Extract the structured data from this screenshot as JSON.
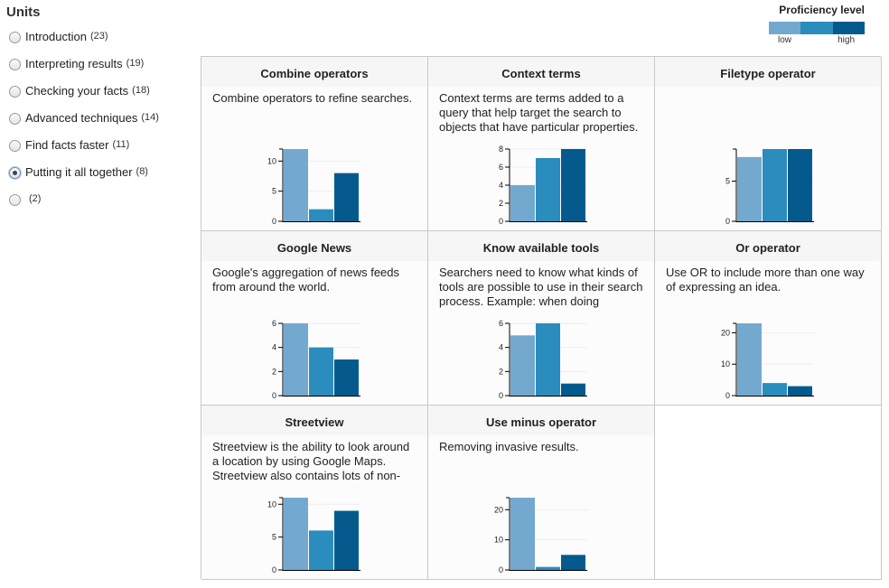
{
  "sidebar": {
    "title": "Units",
    "items": [
      {
        "label": "Introduction",
        "count": "(23)",
        "checked": false
      },
      {
        "label": "Interpreting results",
        "count": "(19)",
        "checked": false
      },
      {
        "label": "Checking your facts",
        "count": "(18)",
        "checked": false
      },
      {
        "label": "Advanced techniques",
        "count": "(14)",
        "checked": false
      },
      {
        "label": "Find facts faster",
        "count": "(11)",
        "checked": false
      },
      {
        "label": "Putting it all together",
        "count": "(8)",
        "checked": true
      },
      {
        "label": "",
        "count": "(2)",
        "checked": false
      }
    ]
  },
  "legend": {
    "title": "Proficiency level",
    "low_label": "low",
    "high_label": "high",
    "colors": [
      "#74a9cf",
      "#2b8cbe",
      "#045a8d"
    ]
  },
  "chart_data": [
    {
      "type": "bar",
      "title": "Combine operators",
      "description": "Combine operators to refine searches.",
      "categories": [
        "low",
        "medium",
        "high"
      ],
      "values": [
        12,
        2,
        8
      ],
      "ylim": [
        0,
        12
      ],
      "yticks": [
        0,
        5,
        10
      ]
    },
    {
      "type": "bar",
      "title": "Context terms",
      "description": "Context terms are terms added to a query that help target the search to objects that have particular properties.",
      "categories": [
        "low",
        "medium",
        "high"
      ],
      "values": [
        4,
        7,
        8
      ],
      "ylim": [
        0,
        8
      ],
      "yticks": [
        0,
        2,
        4,
        6,
        8
      ]
    },
    {
      "type": "bar",
      "title": "Filetype operator",
      "description": "",
      "categories": [
        "low",
        "medium",
        "high"
      ],
      "values": [
        8,
        9,
        9
      ],
      "ylim": [
        0,
        9
      ],
      "yticks": [
        0,
        5
      ]
    },
    {
      "type": "bar",
      "title": "Google News",
      "description": "Google's aggregation of news feeds from around the world.",
      "categories": [
        "low",
        "medium",
        "high"
      ],
      "values": [
        6,
        4,
        3
      ],
      "ylim": [
        0,
        6
      ],
      "yticks": [
        0,
        2,
        4,
        6
      ]
    },
    {
      "type": "bar",
      "title": "Know available tools",
      "description": "Searchers need to know what kinds of tools are possible to use in their search process. Example: when doing",
      "categories": [
        "low",
        "medium",
        "high"
      ],
      "values": [
        5,
        6,
        1
      ],
      "ylim": [
        0,
        6
      ],
      "yticks": [
        0,
        2,
        4,
        6
      ]
    },
    {
      "type": "bar",
      "title": "Or operator",
      "description": "Use OR to include more than one way of expressing an idea.",
      "categories": [
        "low",
        "medium",
        "high"
      ],
      "values": [
        23,
        4,
        3
      ],
      "ylim": [
        0,
        23
      ],
      "yticks": [
        0,
        10,
        20
      ]
    },
    {
      "type": "bar",
      "title": "Streetview",
      "description": "Streetview is the ability to look around a location by using Google Maps. Streetview also contains lots of non-",
      "categories": [
        "low",
        "medium",
        "high"
      ],
      "values": [
        11,
        6,
        9
      ],
      "ylim": [
        0,
        11
      ],
      "yticks": [
        0,
        5,
        10
      ]
    },
    {
      "type": "bar",
      "title": "Use minus operator",
      "description": "Removing invasive results.",
      "categories": [
        "low",
        "medium",
        "high"
      ],
      "values": [
        24,
        1,
        5
      ],
      "ylim": [
        0,
        24
      ],
      "yticks": [
        0,
        10,
        20
      ]
    }
  ]
}
